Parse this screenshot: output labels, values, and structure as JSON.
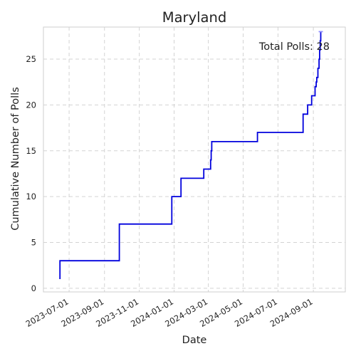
{
  "chart_data": {
    "type": "line",
    "title": "Maryland",
    "xlabel": "Date",
    "ylabel": "Cumulative Number of Polls",
    "annotation": "Total Polls: 28",
    "xlim": [
      "2023-05-17",
      "2024-10-27"
    ],
    "ylim": [
      -0.4,
      28.5
    ],
    "grid": true,
    "x_ticks": [
      "2023-07-01",
      "2023-09-01",
      "2023-11-01",
      "2024-01-01",
      "2024-03-01",
      "2024-05-01",
      "2024-07-01",
      "2024-09-01"
    ],
    "y_ticks": [
      0,
      5,
      10,
      15,
      20,
      25
    ],
    "series": [
      {
        "color": "#0000dd",
        "x": [
          "2023-06-15",
          "2023-06-15",
          "2023-09-27",
          "2023-12-28",
          "2024-01-13",
          "2024-02-22",
          "2024-03-05",
          "2024-03-06",
          "2024-03-07",
          "2024-05-26",
          "2024-08-14",
          "2024-08-22",
          "2024-08-29",
          "2024-09-04",
          "2024-09-06",
          "2024-09-07",
          "2024-09-09",
          "2024-09-11",
          "2024-09-12",
          "2024-09-13",
          "2024-09-14"
        ],
        "y": [
          1,
          3,
          7,
          10,
          12,
          13,
          14,
          15,
          16,
          17,
          19,
          20,
          21,
          22,
          22.5,
          23,
          24,
          25,
          26,
          27,
          28
        ]
      }
    ]
  }
}
